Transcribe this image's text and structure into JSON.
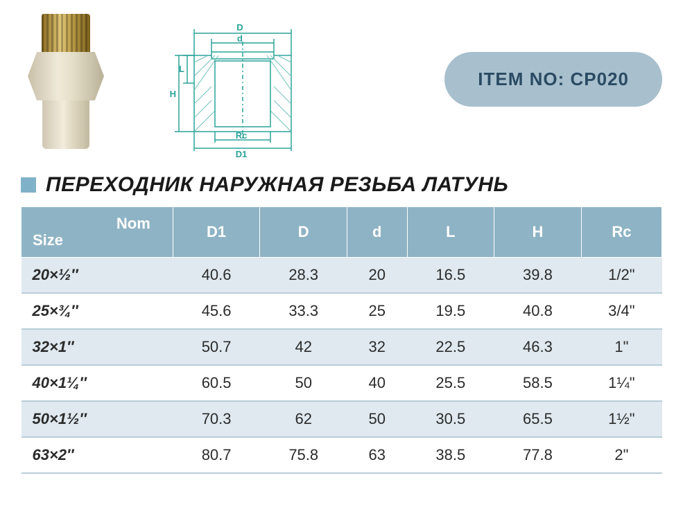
{
  "item_badge": "ITEM NO: CP020",
  "title": "ПЕРЕХОДНИК НАРУЖНАЯ РЕЗЬБА ЛАТУНЬ",
  "diagram_labels": {
    "D": "D",
    "d": "d",
    "L": "L",
    "H": "H",
    "Rc": "Rc",
    "D1": "D1"
  },
  "colors": {
    "badge_bg": "#a8bfcd",
    "badge_text": "#2a4b63",
    "header_bg": "#8eb3c5",
    "row_odd": "#dfe9ef",
    "row_even": "#ffffff",
    "border": "#b9cdd8",
    "accent_sq": "#7fb2c8",
    "diagram_stroke": "#2aa39a"
  },
  "table": {
    "columns": [
      "Nom Size",
      "D1",
      "D",
      "d",
      "L",
      "H",
      "Rc"
    ],
    "rows": [
      {
        "nom": "20×½″",
        "D1": "40.6",
        "D": "28.3",
        "d": "20",
        "L": "16.5",
        "H": "39.8",
        "Rc": "1/2\""
      },
      {
        "nom": "25×¾″",
        "D1": "45.6",
        "D": "33.3",
        "d": "25",
        "L": "19.5",
        "H": "40.8",
        "Rc": "3/4\""
      },
      {
        "nom": "32×1″",
        "D1": "50.7",
        "D": "42",
        "d": "32",
        "L": "22.5",
        "H": "46.3",
        "Rc": "1\""
      },
      {
        "nom": "40×1¼″",
        "D1": "60.5",
        "D": "50",
        "d": "40",
        "L": "25.5",
        "H": "58.5",
        "Rc": "1¼\""
      },
      {
        "nom": "50×1½″",
        "D1": "70.3",
        "D": "62",
        "d": "50",
        "L": "30.5",
        "H": "65.5",
        "Rc": "1½\""
      },
      {
        "nom": "63×2″",
        "D1": "80.7",
        "D": "75.8",
        "d": "63",
        "L": "38.5",
        "H": "77.8",
        "Rc": "2\""
      }
    ]
  }
}
